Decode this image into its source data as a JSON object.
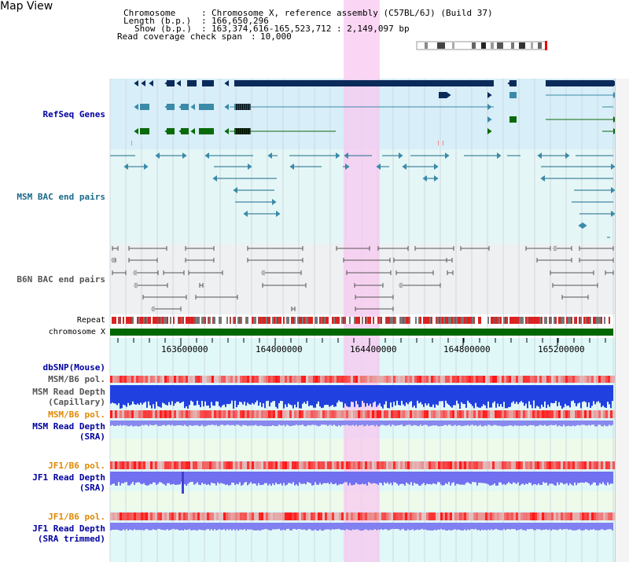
{
  "page": {
    "title": "Map View"
  },
  "header": {
    "chromosome_label": "Chromosome",
    "chromosome_value": "Chromosome X, reference assembly (C57BL/6J) (Build 37)",
    "length_label": "Length (b.p.)",
    "length_value": "166,650,296",
    "show_label": "Show (b.p.)",
    "show_value": "163,374,616-165,523,712 : 2,149,097 bp",
    "span_label": "Read coverage check span",
    "span_value": "10,000"
  },
  "tracks": {
    "refseq": "RefSeq Genes",
    "msm_bac": "MSM BAC end pairs",
    "b6n_bac": "B6N BAC end pairs",
    "repeat": "Repeat",
    "chromosome": "chromosome X",
    "dbsnp": "dbSNP(Mouse)",
    "msm_b6_pol_1": "MSM/B6 pol.",
    "msm_read_depth_cap_1": "MSM Read Depth",
    "msm_read_depth_cap_2": "(Capillary)",
    "msm_b6_pol_2": "MSM/B6 pol.",
    "msm_read_depth_sra_1": "MSM Read Depth",
    "msm_read_depth_sra_2": "(SRA)",
    "jf1_b6_pol_1": "JF1/B6 pol.",
    "jf1_read_depth_1": "JF1 Read Depth",
    "jf1_read_depth_2": "(SRA)",
    "jf1_b6_pol_2": "JF1/B6 pol.",
    "jf1_read_depth_trim_1": "JF1 Read Depth",
    "jf1_read_depth_trim_2": "(SRA trimmed)"
  },
  "axis": {
    "ticks": [
      "163600000",
      "164000000",
      "164400000",
      "164800000",
      "165200000"
    ]
  },
  "colors": {
    "refseq_bg": "#d8eef8",
    "msm_bg": "#e4f6f6",
    "b6n_bg": "#eef0f2",
    "depth_bg": "#e0f8f8",
    "highlight": "#f8c8f0",
    "navy": "#0a2a5a",
    "teal": "#3a8aa8",
    "green": "#0a6a0a",
    "blue_label": "#0000a0",
    "orange_label": "#e08800"
  }
}
